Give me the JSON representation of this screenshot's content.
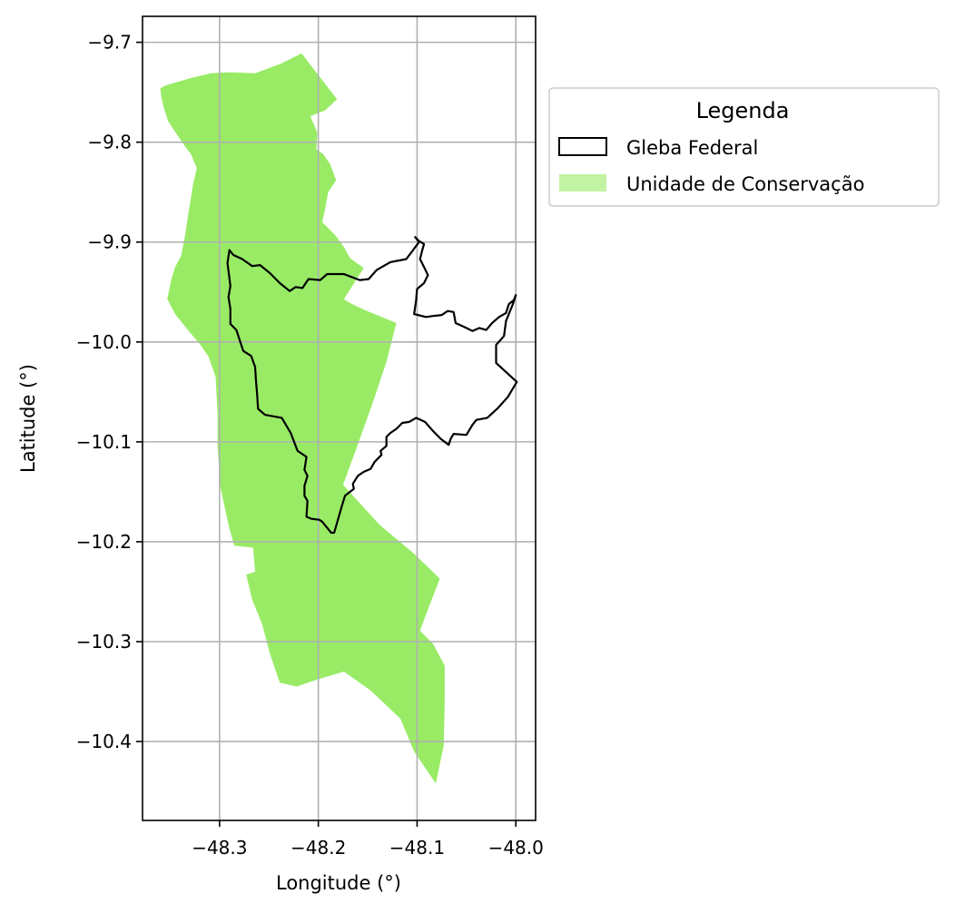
{
  "chart_data": {
    "type": "map",
    "xlabel": "Longitude (°)",
    "ylabel": "Latitude (°)",
    "xlim": [
      -48.378,
      -47.98
    ],
    "ylim": [
      -10.479,
      -9.674
    ],
    "x_ticks": [
      -48.3,
      -48.2,
      -48.1,
      -48.0
    ],
    "y_ticks": [
      -9.7,
      -9.8,
      -9.9,
      -10.0,
      -10.1,
      -10.2,
      -10.3,
      -10.4
    ],
    "x_tick_labels": [
      "−48.3",
      "−48.2",
      "−48.1",
      "−48.0"
    ],
    "y_tick_labels": [
      "−9.7",
      "−9.8",
      "−9.9",
      "−10.0",
      "−10.1",
      "−10.2",
      "−10.3",
      "−10.4"
    ],
    "grid": true,
    "legend": {
      "title": "Legenda",
      "placement": "outside-right-top",
      "entries": [
        {
          "label": "Gleba Federal",
          "style": "outline",
          "color": "#000000"
        },
        {
          "label": "Unidade de Conservação",
          "style": "fill",
          "color": "#99eb66"
        }
      ]
    },
    "series": [
      {
        "name": "Unidade de Conservação",
        "kind": "fill",
        "color": "#99eb66",
        "coordinates": [
          [
            -48.217,
            -9.711
          ],
          [
            -48.181,
            -9.757
          ],
          [
            -48.193,
            -9.768
          ],
          [
            -48.208,
            -9.774
          ],
          [
            -48.201,
            -9.79
          ],
          [
            -48.202,
            -9.807
          ],
          [
            -48.195,
            -9.812
          ],
          [
            -48.188,
            -9.822
          ],
          [
            -48.182,
            -9.838
          ],
          [
            -48.19,
            -9.85
          ],
          [
            -48.193,
            -9.866
          ],
          [
            -48.196,
            -9.88
          ],
          [
            -48.182,
            -9.894
          ],
          [
            -48.174,
            -9.905
          ],
          [
            -48.168,
            -9.916
          ],
          [
            -48.154,
            -9.926
          ],
          [
            -48.165,
            -9.943
          ],
          [
            -48.174,
            -9.957
          ],
          [
            -48.168,
            -9.961
          ],
          [
            -48.153,
            -9.968
          ],
          [
            -48.121,
            -9.981
          ],
          [
            -48.131,
            -10.02
          ],
          [
            -48.146,
            -10.064
          ],
          [
            -48.162,
            -10.108
          ],
          [
            -48.175,
            -10.143
          ],
          [
            -48.138,
            -10.183
          ],
          [
            -48.103,
            -10.212
          ],
          [
            -48.077,
            -10.237
          ],
          [
            -48.088,
            -10.265
          ],
          [
            -48.097,
            -10.289
          ],
          [
            -48.084,
            -10.302
          ],
          [
            -48.072,
            -10.324
          ],
          [
            -48.072,
            -10.36
          ],
          [
            -48.073,
            -10.404
          ],
          [
            -48.081,
            -10.442
          ],
          [
            -48.103,
            -10.41
          ],
          [
            -48.117,
            -10.377
          ],
          [
            -48.147,
            -10.349
          ],
          [
            -48.174,
            -10.33
          ],
          [
            -48.201,
            -10.338
          ],
          [
            -48.222,
            -10.345
          ],
          [
            -48.239,
            -10.341
          ],
          [
            -48.249,
            -10.312
          ],
          [
            -48.257,
            -10.282
          ],
          [
            -48.267,
            -10.258
          ],
          [
            -48.273,
            -10.233
          ],
          [
            -48.264,
            -10.23
          ],
          [
            -48.266,
            -10.206
          ],
          [
            -48.285,
            -10.204
          ],
          [
            -48.29,
            -10.187
          ],
          [
            -48.299,
            -10.146
          ],
          [
            -48.302,
            -10.106
          ],
          [
            -48.302,
            -10.073
          ],
          [
            -48.304,
            -10.035
          ],
          [
            -48.311,
            -10.015
          ],
          [
            -48.32,
            -10.002
          ],
          [
            -48.333,
            -9.987
          ],
          [
            -48.345,
            -9.972
          ],
          [
            -48.353,
            -9.957
          ],
          [
            -48.349,
            -9.938
          ],
          [
            -48.345,
            -9.925
          ],
          [
            -48.339,
            -9.914
          ],
          [
            -48.335,
            -9.894
          ],
          [
            -48.332,
            -9.874
          ],
          [
            -48.329,
            -9.856
          ],
          [
            -48.327,
            -9.843
          ],
          [
            -48.323,
            -9.826
          ],
          [
            -48.329,
            -9.812
          ],
          [
            -48.338,
            -9.8
          ],
          [
            -48.346,
            -9.788
          ],
          [
            -48.352,
            -9.779
          ],
          [
            -48.356,
            -9.767
          ],
          [
            -48.359,
            -9.755
          ],
          [
            -48.36,
            -9.746
          ],
          [
            -48.354,
            -9.743
          ],
          [
            -48.33,
            -9.736
          ],
          [
            -48.317,
            -9.733
          ],
          [
            -48.309,
            -9.731
          ],
          [
            -48.29,
            -9.73
          ],
          [
            -48.264,
            -9.731
          ],
          [
            -48.237,
            -9.721
          ]
        ]
      },
      {
        "name": "Gleba Federal",
        "kind": "outline",
        "color": "#000000",
        "coordinates": [
          [
            -48.102,
            -9.895
          ],
          [
            -48.098,
            -9.899
          ],
          [
            -48.093,
            -9.902
          ],
          [
            -48.095,
            -9.909
          ],
          [
            -48.097,
            -9.917
          ],
          [
            -48.093,
            -9.925
          ],
          [
            -48.089,
            -9.933
          ],
          [
            -48.093,
            -9.941
          ],
          [
            -48.1,
            -9.947
          ],
          [
            -48.101,
            -9.958
          ],
          [
            -48.103,
            -9.972
          ],
          [
            -48.091,
            -9.975
          ],
          [
            -48.084,
            -9.974
          ],
          [
            -48.075,
            -9.973
          ],
          [
            -48.069,
            -9.969
          ],
          [
            -48.063,
            -9.97
          ],
          [
            -48.061,
            -9.981
          ],
          [
            -48.05,
            -9.986
          ],
          [
            -48.044,
            -9.989
          ],
          [
            -48.037,
            -9.986
          ],
          [
            -48.03,
            -9.988
          ],
          [
            -48.024,
            -9.981
          ],
          [
            -48.017,
            -9.975
          ],
          [
            -48.01,
            -9.971
          ],
          [
            -48.007,
            -9.962
          ],
          [
            -48.002,
            -9.958
          ],
          [
            -48.0,
            -9.953
          ],
          [
            -48.003,
            -9.962
          ],
          [
            -48.01,
            -9.979
          ],
          [
            -48.012,
            -9.994
          ],
          [
            -48.02,
            -10.003
          ],
          [
            -48.02,
            -10.021
          ],
          [
            -47.999,
            -10.04
          ],
          [
            -48.008,
            -10.055
          ],
          [
            -48.018,
            -10.066
          ],
          [
            -48.029,
            -10.076
          ],
          [
            -48.04,
            -10.078
          ],
          [
            -48.044,
            -10.083
          ],
          [
            -48.05,
            -10.093
          ],
          [
            -48.063,
            -10.092
          ],
          [
            -48.066,
            -10.097
          ],
          [
            -48.068,
            -10.103
          ],
          [
            -48.076,
            -10.097
          ],
          [
            -48.084,
            -10.089
          ],
          [
            -48.092,
            -10.08
          ],
          [
            -48.101,
            -10.076
          ],
          [
            -48.108,
            -10.08
          ],
          [
            -48.115,
            -10.081
          ],
          [
            -48.121,
            -10.087
          ],
          [
            -48.127,
            -10.091
          ],
          [
            -48.131,
            -10.095
          ],
          [
            -48.131,
            -10.104
          ],
          [
            -48.137,
            -10.109
          ],
          [
            -48.136,
            -10.113
          ],
          [
            -48.143,
            -10.12
          ],
          [
            -48.147,
            -10.127
          ],
          [
            -48.154,
            -10.13
          ],
          [
            -48.16,
            -10.134
          ],
          [
            -48.165,
            -10.142
          ],
          [
            -48.164,
            -10.147
          ],
          [
            -48.173,
            -10.154
          ],
          [
            -48.177,
            -10.167
          ],
          [
            -48.181,
            -10.181
          ],
          [
            -48.184,
            -10.191
          ],
          [
            -48.187,
            -10.191
          ],
          [
            -48.196,
            -10.18
          ],
          [
            -48.199,
            -10.178
          ],
          [
            -48.207,
            -10.177
          ],
          [
            -48.212,
            -10.175
          ],
          [
            -48.211,
            -10.159
          ],
          [
            -48.214,
            -10.154
          ],
          [
            -48.214,
            -10.144
          ],
          [
            -48.211,
            -10.134
          ],
          [
            -48.214,
            -10.128
          ],
          [
            -48.212,
            -10.115
          ],
          [
            -48.221,
            -10.109
          ],
          [
            -48.228,
            -10.091
          ],
          [
            -48.237,
            -10.076
          ],
          [
            -48.254,
            -10.073
          ],
          [
            -48.261,
            -10.067
          ],
          [
            -48.262,
            -10.052
          ],
          [
            -48.263,
            -10.04
          ],
          [
            -48.264,
            -10.025
          ],
          [
            -48.268,
            -10.014
          ],
          [
            -48.276,
            -10.009
          ],
          [
            -48.28,
            -9.997
          ],
          [
            -48.283,
            -9.988
          ],
          [
            -48.289,
            -9.982
          ],
          [
            -48.289,
            -9.967
          ],
          [
            -48.291,
            -9.955
          ],
          [
            -48.289,
            -9.944
          ],
          [
            -48.292,
            -9.921
          ],
          [
            -48.29,
            -9.908
          ],
          [
            -48.286,
            -9.913
          ],
          [
            -48.277,
            -9.917
          ],
          [
            -48.267,
            -9.924
          ],
          [
            -48.259,
            -9.923
          ],
          [
            -48.249,
            -9.931
          ],
          [
            -48.239,
            -9.941
          ],
          [
            -48.229,
            -9.949
          ],
          [
            -48.223,
            -9.945
          ],
          [
            -48.216,
            -9.946
          ],
          [
            -48.21,
            -9.937
          ],
          [
            -48.198,
            -9.938
          ],
          [
            -48.191,
            -9.932
          ],
          [
            -48.174,
            -9.932
          ],
          [
            -48.158,
            -9.938
          ],
          [
            -48.149,
            -9.937
          ],
          [
            -48.141,
            -9.928
          ],
          [
            -48.127,
            -9.92
          ],
          [
            -48.111,
            -9.917
          ],
          [
            -48.104,
            -9.908
          ],
          [
            -48.098,
            -9.9
          ]
        ]
      }
    ]
  }
}
